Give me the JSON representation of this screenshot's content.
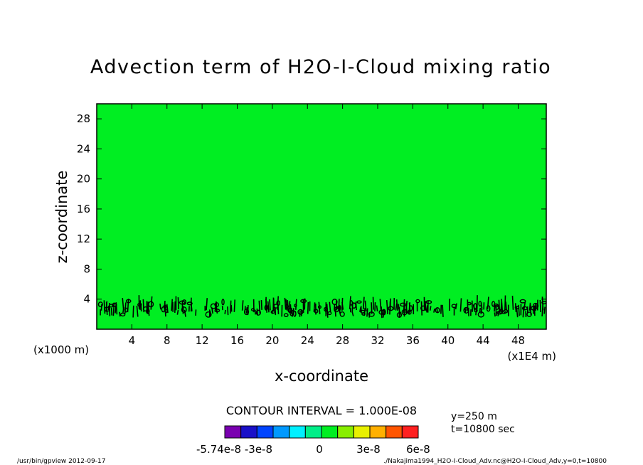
{
  "chart_data": {
    "type": "heatmap",
    "title": "Advection term of H2O-I-Cloud mixing ratio",
    "xlabel": "x-coordinate",
    "ylabel": "z-coordinate",
    "x_scale_note": "(x1E4 m)",
    "y_scale_note": "(x1000 m)",
    "xlim": [
      0,
      51.2
    ],
    "ylim": [
      0,
      30
    ],
    "x_ticks": [
      4,
      8,
      12,
      16,
      20,
      24,
      28,
      32,
      36,
      40,
      44,
      48
    ],
    "y_ticks": [
      4,
      8,
      12,
      16,
      20,
      24,
      28
    ],
    "background_level": 0,
    "background_color": "#00ee22",
    "contour_interval": "CONTOUR INTERVAL = 1.000E-08",
    "contour_band_z": [
      1.5,
      3.5
    ],
    "colorbar": {
      "colors": [
        "#7a00b0",
        "#1a10c8",
        "#0044ff",
        "#0099ff",
        "#00f0ff",
        "#00ee88",
        "#00ee22",
        "#88ee00",
        "#e8f000",
        "#ffb000",
        "#ff5500",
        "#ff2020"
      ],
      "labels": [
        "-5.74e-8",
        "-3e-8",
        "0",
        "3e-8",
        "6e-8"
      ]
    },
    "info": [
      "y=250 m",
      "t=10800 sec"
    ]
  },
  "footer": {
    "left": "/usr/bin/gpview  2012-09-17",
    "right": "./Nakajima1994_H2O-I-Cloud_Adv.nc@H2O-I-Cloud_Adv,y=0,t=10800"
  }
}
